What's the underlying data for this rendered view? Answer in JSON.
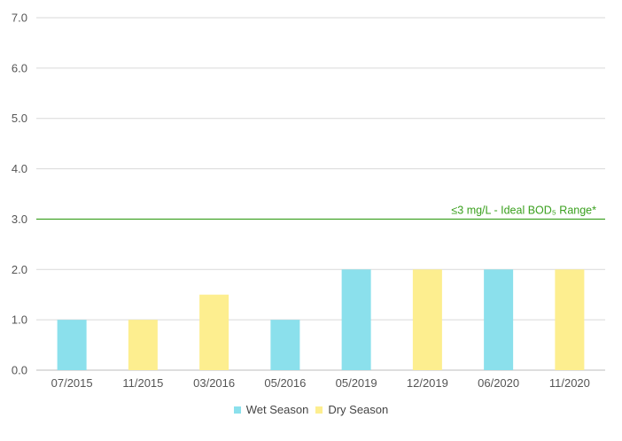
{
  "chart_data": {
    "type": "bar",
    "categories": [
      "07/2015",
      "11/2015",
      "03/2016",
      "05/2016",
      "05/2019",
      "12/2019",
      "06/2020",
      "11/2020"
    ],
    "values": [
      1.0,
      1.0,
      1.5,
      1.0,
      2.0,
      2.0,
      2.0,
      2.0
    ],
    "seasons": [
      "Wet Season",
      "Dry Season",
      "Dry Season",
      "Wet Season",
      "Wet Season",
      "Dry Season",
      "Wet Season",
      "Dry Season"
    ],
    "series": [
      {
        "name": "Wet Season",
        "color": "#8be0ec"
      },
      {
        "name": "Dry Season",
        "color": "#fdee8f"
      }
    ],
    "ylim": [
      0,
      7
    ],
    "yticks": [
      "0.0",
      "1.0",
      "2.0",
      "3.0",
      "4.0",
      "5.0",
      "6.0",
      "7.0"
    ],
    "grid": true,
    "legend_position": "bottom",
    "reference_line": {
      "value": 3.0,
      "label": "≤3 mg/L - Ideal BOD₅ Range*",
      "color": "#3aa01e"
    }
  }
}
